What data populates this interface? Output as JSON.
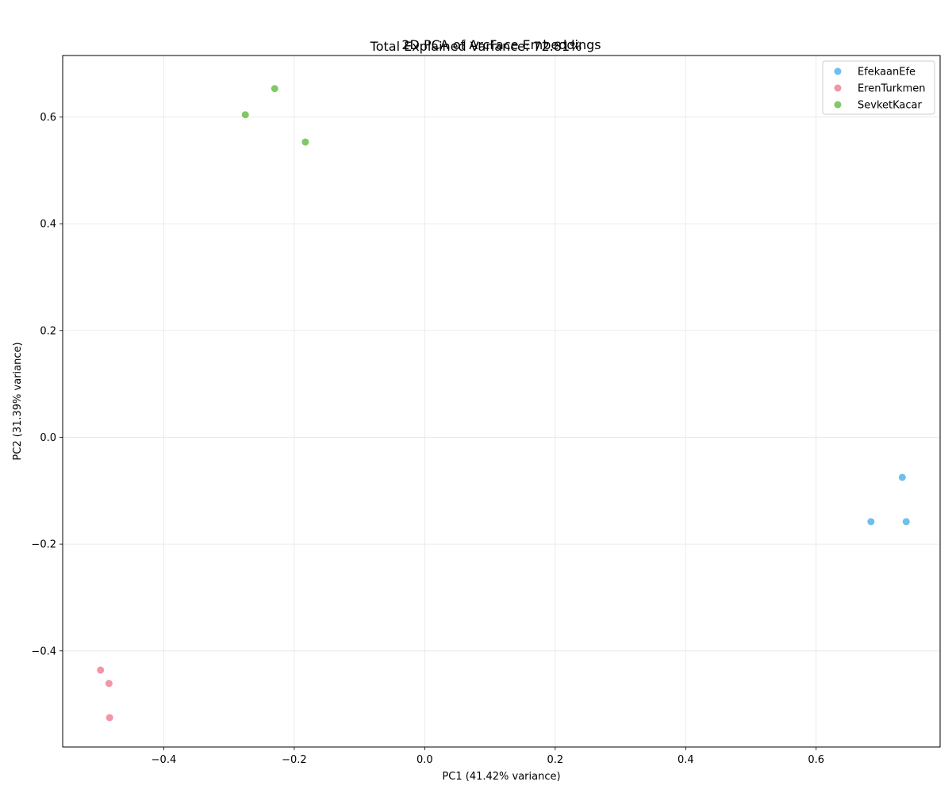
{
  "chart_data": {
    "type": "scatter",
    "title": "2D PCA of ArcFace Embeddings",
    "subtitle": "Total Explained Variance: 72.81%",
    "xlabel": "PC1 (41.42% variance)",
    "ylabel": "PC2 (31.39% variance)",
    "xlim": [
      -0.555,
      0.79
    ],
    "ylim": [
      -0.58,
      0.715
    ],
    "xticks": [
      -0.4,
      -0.2,
      0.0,
      0.2,
      0.4,
      0.6
    ],
    "xtick_labels": [
      "−0.4",
      "−0.2",
      "0.0",
      "0.2",
      "0.4",
      "0.6"
    ],
    "yticks": [
      -0.4,
      -0.2,
      0.0,
      0.2,
      0.4,
      0.6
    ],
    "ytick_labels": [
      "−0.4",
      "−0.2",
      "0.0",
      "0.2",
      "0.4",
      "0.6"
    ],
    "grid": true,
    "legend_position": "top-right",
    "series": [
      {
        "name": "EfekaanEfe",
        "color": "#56b4e9",
        "points": [
          [
            0.732,
            -0.075
          ],
          [
            0.684,
            -0.158
          ],
          [
            0.738,
            -0.158
          ]
        ]
      },
      {
        "name": "ErenTurkmen",
        "color": "#f08395",
        "points": [
          [
            -0.497,
            -0.436
          ],
          [
            -0.484,
            -0.461
          ],
          [
            -0.483,
            -0.525
          ]
        ]
      },
      {
        "name": "SevketKacar",
        "color": "#6abf4b",
        "points": [
          [
            -0.23,
            0.653
          ],
          [
            -0.275,
            0.604
          ],
          [
            -0.183,
            0.553
          ]
        ]
      }
    ]
  }
}
